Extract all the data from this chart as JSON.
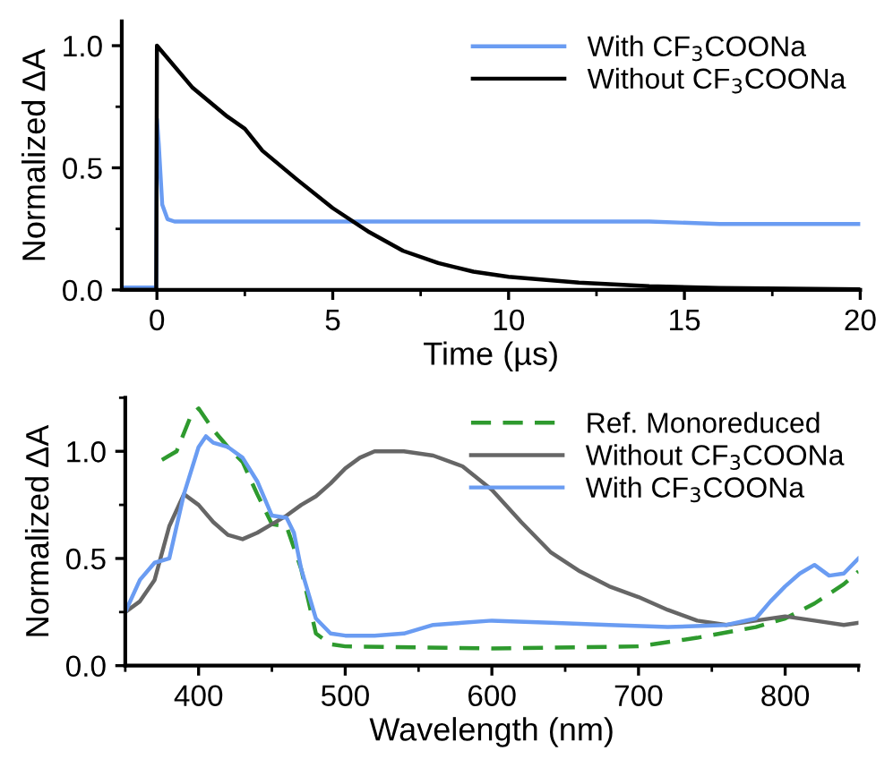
{
  "chart_data": [
    {
      "type": "line",
      "xlabel": "Time (µs)",
      "ylabel": "Normalized ΔA",
      "xlim": [
        -1,
        20
      ],
      "ylim": [
        0,
        1.1
      ],
      "xticks": [
        0,
        5,
        10,
        15,
        20
      ],
      "yticks": [
        {
          "value": 0,
          "label": "0.0"
        },
        {
          "value": 0.5,
          "label": "0.5"
        },
        {
          "value": 1,
          "label": "1.0"
        }
      ],
      "legend": "top right",
      "grid": false,
      "line_style": "solid",
      "series": [
        {
          "name": "With CF$_{3}$COONa",
          "color": "#6a9cf2",
          "x": [
            -1,
            -0.5,
            -0.02,
            0,
            0.05,
            0.15,
            0.3,
            0.5,
            1,
            2,
            4,
            6,
            8,
            10,
            12,
            14,
            16,
            18,
            20
          ],
          "values": [
            0.01,
            0.01,
            0.01,
            0.7,
            0.6,
            0.35,
            0.29,
            0.28,
            0.28,
            0.28,
            0.28,
            0.28,
            0.28,
            0.28,
            0.28,
            0.28,
            0.27,
            0.27,
            0.27
          ]
        },
        {
          "name": "Without CF$_{3}$COONa",
          "color": "#000000",
          "x": [
            -1,
            -0.02,
            0,
            1,
            2,
            2.5,
            3,
            4,
            5,
            6,
            7,
            8,
            9,
            10,
            12,
            14,
            16,
            18,
            20
          ],
          "values": [
            0,
            0,
            1.0,
            0.83,
            0.71,
            0.66,
            0.57,
            0.45,
            0.335,
            0.24,
            0.16,
            0.11,
            0.075,
            0.054,
            0.03,
            0.015,
            0.008,
            0.005,
            0.003
          ]
        }
      ]
    },
    {
      "type": "line",
      "xlabel": "Wavelength (nm)",
      "ylabel": "Normalized ΔA",
      "xlim": [
        350,
        850
      ],
      "ylim": [
        0,
        1.25
      ],
      "xticks": [
        400,
        500,
        600,
        700,
        800
      ],
      "yticks": [
        {
          "value": 0,
          "label": "0.0"
        },
        {
          "value": 0.5,
          "label": "0.5"
        },
        {
          "value": 1,
          "label": "1.0"
        }
      ],
      "legend": "top right",
      "grid": false,
      "series": [
        {
          "name": "Ref. Monoreduced",
          "color": "#2e9a2e",
          "line_style": "dashed",
          "x": [
            375,
            385,
            395,
            400,
            410,
            420,
            430,
            440,
            450,
            460,
            470,
            480,
            490,
            500,
            600,
            700,
            740,
            780,
            800,
            820,
            840,
            850
          ],
          "values": [
            0.96,
            1.0,
            1.17,
            1.2,
            1.1,
            1.02,
            0.95,
            0.8,
            0.66,
            0.65,
            0.45,
            0.15,
            0.1,
            0.09,
            0.08,
            0.09,
            0.13,
            0.18,
            0.22,
            0.29,
            0.38,
            0.44
          ]
        },
        {
          "name": "Without CF$_{3}$COONa",
          "color": "#666666",
          "line_style": "solid",
          "x": [
            350,
            360,
            370,
            380,
            390,
            400,
            410,
            420,
            430,
            440,
            450,
            460,
            470,
            480,
            490,
            500,
            510,
            520,
            540,
            560,
            580,
            600,
            620,
            640,
            660,
            680,
            700,
            720,
            740,
            760,
            780,
            800,
            820,
            840,
            850
          ],
          "values": [
            0.25,
            0.3,
            0.4,
            0.65,
            0.8,
            0.75,
            0.67,
            0.61,
            0.59,
            0.62,
            0.66,
            0.7,
            0.75,
            0.79,
            0.85,
            0.92,
            0.97,
            1.0,
            1.0,
            0.98,
            0.93,
            0.82,
            0.67,
            0.53,
            0.44,
            0.37,
            0.32,
            0.26,
            0.21,
            0.19,
            0.21,
            0.23,
            0.21,
            0.19,
            0.2
          ]
        },
        {
          "name": "With CF$_{3}$COONa",
          "color": "#6a9cf2",
          "line_style": "solid",
          "x": [
            350,
            360,
            370,
            380,
            390,
            400,
            405,
            410,
            420,
            430,
            440,
            450,
            460,
            465,
            470,
            480,
            490,
            500,
            520,
            540,
            560,
            580,
            600,
            640,
            680,
            720,
            760,
            780,
            790,
            800,
            810,
            820,
            830,
            840,
            850
          ],
          "values": [
            0.25,
            0.4,
            0.48,
            0.5,
            0.8,
            1.02,
            1.07,
            1.04,
            1.02,
            0.97,
            0.86,
            0.7,
            0.69,
            0.62,
            0.45,
            0.22,
            0.15,
            0.14,
            0.14,
            0.15,
            0.19,
            0.2,
            0.21,
            0.2,
            0.19,
            0.18,
            0.19,
            0.22,
            0.3,
            0.37,
            0.43,
            0.47,
            0.42,
            0.43,
            0.5
          ]
        }
      ]
    }
  ]
}
